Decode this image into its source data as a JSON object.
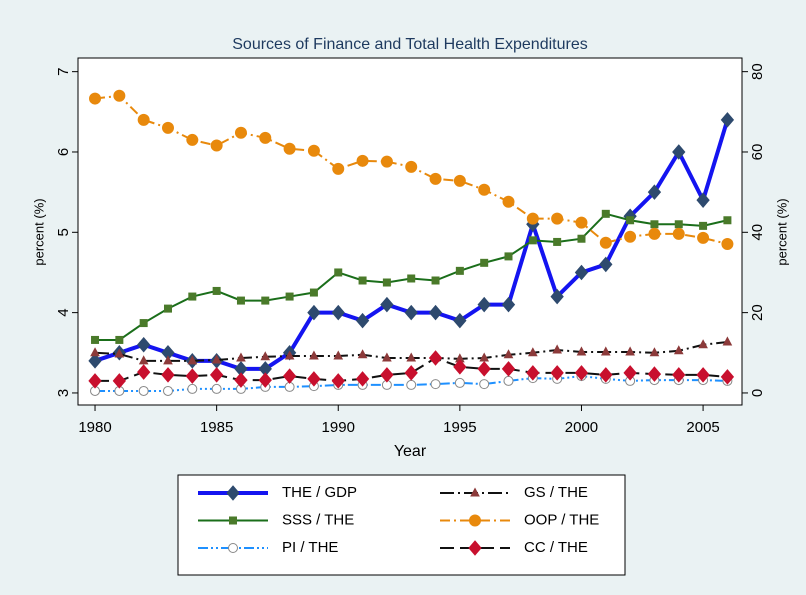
{
  "chart_data": {
    "type": "line",
    "title": "Sources of Finance and Total Health Expenditures",
    "xlabel": "Year",
    "ylabel": "percent (%)",
    "y2label": "percent (%)",
    "x": [
      1980,
      1981,
      1982,
      1983,
      1984,
      1985,
      1986,
      1987,
      1988,
      1989,
      1990,
      1991,
      1992,
      1993,
      1994,
      1995,
      1996,
      1997,
      1998,
      1999,
      2000,
      2001,
      2002,
      2003,
      2004,
      2005,
      2006
    ],
    "xlim": [
      1979.3,
      2006.6
    ],
    "xticks": [
      1980,
      1985,
      1990,
      1995,
      2000,
      2005
    ],
    "ylim": [
      2.85,
      7.17
    ],
    "yticks": [
      3,
      4,
      5,
      6,
      7
    ],
    "y2lim": [
      -3,
      83.4
    ],
    "y2ticks": [
      0,
      20,
      40,
      60,
      80
    ],
    "legend": "bottom",
    "series": [
      {
        "name": "THE / GDP",
        "color": "#1414f0",
        "marker_color": "#2e4a6e",
        "marker": "diamond",
        "line_style": "solid",
        "width": 4,
        "axis": "y",
        "values": [
          3.4,
          3.5,
          3.6,
          3.5,
          3.4,
          3.4,
          3.3,
          3.3,
          3.5,
          4.0,
          4.0,
          3.9,
          4.1,
          4.0,
          4.0,
          3.9,
          4.1,
          4.1,
          5.1,
          4.2,
          4.5,
          4.6,
          5.2,
          5.5,
          6.0,
          5.4,
          6.4
        ]
      },
      {
        "name": "GS / THE",
        "color": "#111111",
        "marker_color": "#8c3a3a",
        "marker": "triangle",
        "line_style": "longdashdot",
        "width": 2,
        "axis": "y2",
        "values": [
          10,
          9.7,
          8,
          8,
          8,
          8.2,
          8.7,
          9,
          9.2,
          9.2,
          9.2,
          9.5,
          8.7,
          8.7,
          8.7,
          8.5,
          8.7,
          9.5,
          10,
          10.7,
          10.2,
          10.2,
          10.2,
          10,
          10.5,
          12,
          12.7
        ]
      },
      {
        "name": "SSS / THE",
        "color": "#1a6e1a",
        "marker_color": "#4a7a2a",
        "marker": "square",
        "line_style": "solid",
        "width": 2,
        "axis": "y2",
        "values": [
          13.2,
          13.2,
          17.4,
          21,
          24,
          25.4,
          23,
          23,
          24,
          25,
          30,
          28,
          27.5,
          28.5,
          28,
          30.4,
          32.4,
          34,
          38,
          37.6,
          38.4,
          44.6,
          43,
          42,
          42,
          41.6,
          43
        ]
      },
      {
        "name": "OOP / THE",
        "color": "#e8890c",
        "marker_color": "#e8890c",
        "marker": "circle",
        "line_style": "dashdot",
        "width": 2,
        "axis": "y2",
        "values": [
          73.3,
          74,
          68,
          66,
          63,
          61.6,
          64.8,
          63.5,
          60.8,
          60.3,
          55.8,
          57.8,
          57.6,
          56.3,
          53.3,
          52.8,
          50.6,
          47.6,
          43.4,
          43.4,
          42.4,
          37.4,
          38.9,
          39.6,
          39.6,
          38.6,
          37.1
        ]
      },
      {
        "name": "PI / THE",
        "color": "#1e90ff",
        "marker_color": "#888888",
        "marker": "hollow-circle",
        "line_style": "dashdotdot",
        "width": 2,
        "axis": "y2",
        "values": [
          0.5,
          0.5,
          0.5,
          0.5,
          1,
          1,
          1,
          1.5,
          1.5,
          1.7,
          2,
          2,
          2,
          2,
          2.2,
          2.5,
          2.2,
          3,
          3.7,
          3.5,
          4.2,
          3.5,
          3,
          3.2,
          3.2,
          3.2,
          3
        ]
      },
      {
        "name": "CC / THE",
        "color": "#111111",
        "marker_color": "#c8102e",
        "marker": "diamond",
        "line_style": "longdash",
        "width": 2,
        "axis": "y2",
        "values": [
          3,
          3,
          5.2,
          4.5,
          4.2,
          4.5,
          3.2,
          3.2,
          4.2,
          3.5,
          3,
          3.5,
          4.5,
          5,
          8.7,
          6.5,
          6,
          6,
          5,
          5,
          5,
          4.5,
          5,
          4.7,
          4.5,
          4.5,
          4
        ]
      }
    ]
  }
}
